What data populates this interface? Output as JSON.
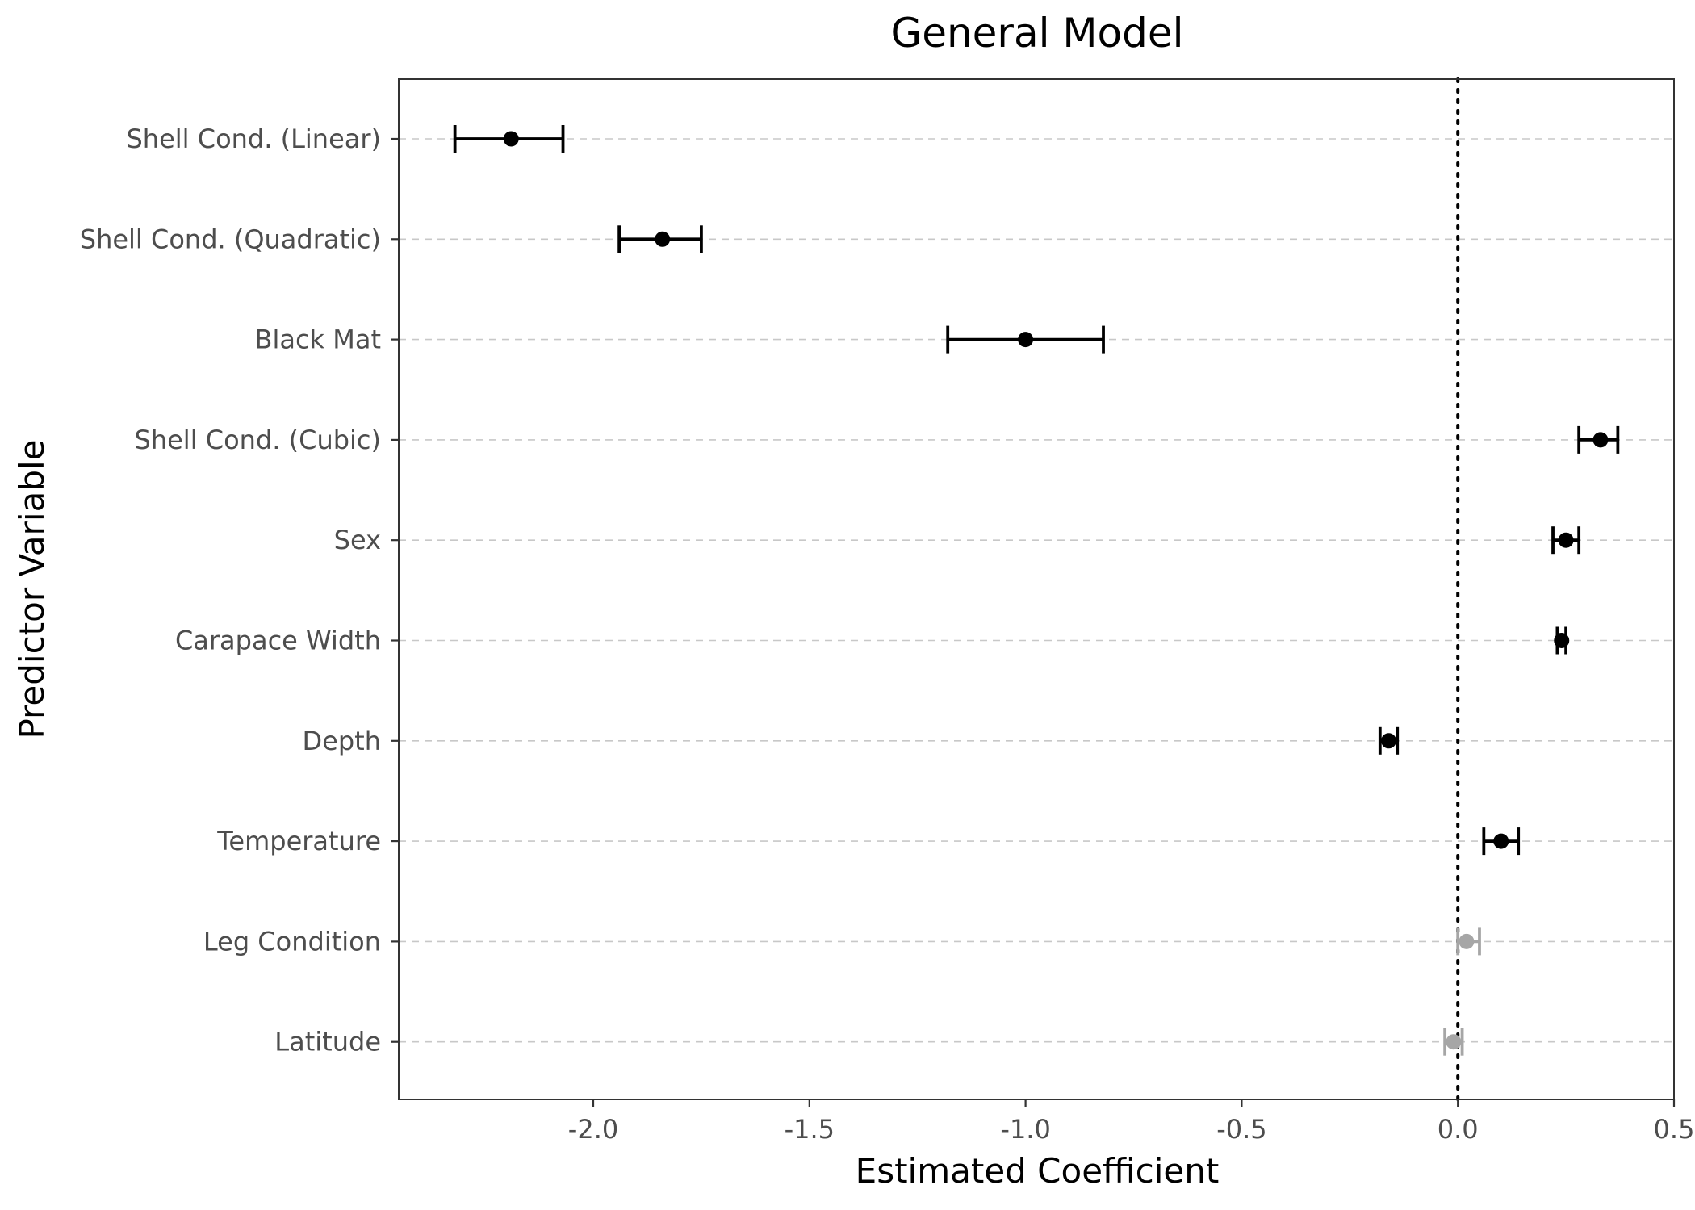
{
  "chart_data": {
    "type": "errorbar",
    "title": "General Model",
    "xlabel": "Estimated Coefficient",
    "ylabel": "Predictor Variable",
    "xlim": [
      -2.45,
      0.5
    ],
    "x_ticks": [
      -2.0,
      -1.5,
      -1.0,
      -0.5,
      0.0,
      0.5
    ],
    "x_tick_labels": [
      "-2.0",
      "-1.5",
      "-1.0",
      "-0.5",
      "0.0",
      "0.5"
    ],
    "reference_line": 0.0,
    "grid": "horizontal dashed",
    "significant_color": "#000000",
    "nonsignificant_color": "#a6a6a6",
    "points": [
      {
        "label": "Shell Cond. (Linear)",
        "estimate": -2.19,
        "lower": -2.32,
        "upper": -2.07,
        "significant": true
      },
      {
        "label": "Shell Cond. (Quadratic)",
        "estimate": -1.84,
        "lower": -1.94,
        "upper": -1.75,
        "significant": true
      },
      {
        "label": "Black Mat",
        "estimate": -1.0,
        "lower": -1.18,
        "upper": -0.82,
        "significant": true
      },
      {
        "label": "Shell Cond. (Cubic)",
        "estimate": 0.33,
        "lower": 0.28,
        "upper": 0.37,
        "significant": true
      },
      {
        "label": "Sex",
        "estimate": 0.25,
        "lower": 0.22,
        "upper": 0.28,
        "significant": true
      },
      {
        "label": "Carapace Width",
        "estimate": 0.24,
        "lower": 0.23,
        "upper": 0.25,
        "significant": true
      },
      {
        "label": "Depth",
        "estimate": -0.16,
        "lower": -0.18,
        "upper": -0.14,
        "significant": true
      },
      {
        "label": "Temperature",
        "estimate": 0.1,
        "lower": 0.06,
        "upper": 0.14,
        "significant": true
      },
      {
        "label": "Leg Condition",
        "estimate": 0.02,
        "lower": 0.0,
        "upper": 0.05,
        "significant": false
      },
      {
        "label": "Latitude",
        "estimate": -0.01,
        "lower": -0.03,
        "upper": 0.01,
        "significant": false
      }
    ]
  }
}
